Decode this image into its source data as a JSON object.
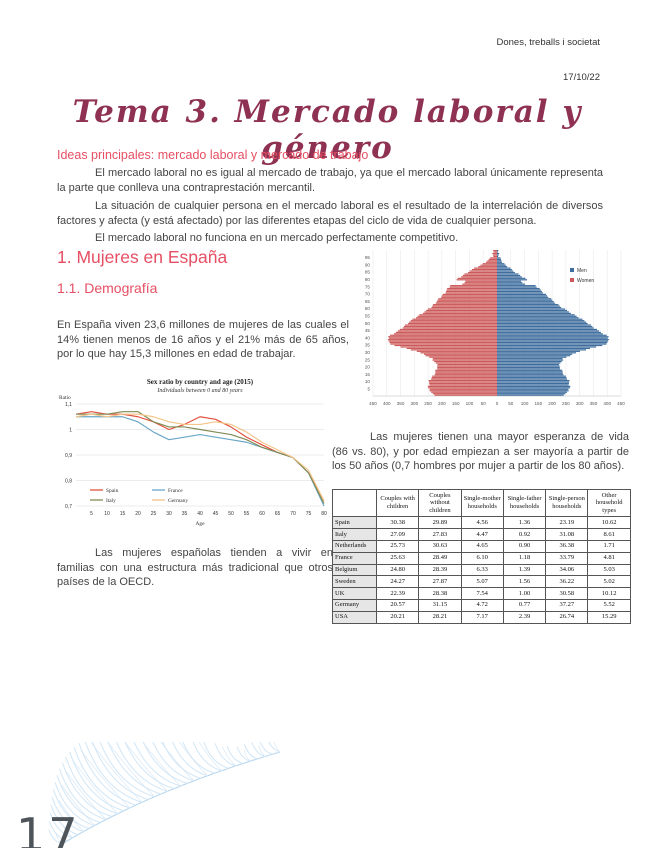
{
  "header": {
    "course": "Dones, treballs i societat",
    "date": "17/10/22"
  },
  "title": "Tema 3. Mercado laboral y género",
  "sections": {
    "ideas_heading": "Ideas principales: mercado laboral y mercado de trabajo",
    "p1": "El mercado laboral no es igual al mercado de trabajo, ya que el mercado laboral únicamente representa la parte que conlleva una contraprestación mercantil.",
    "p2": "La situación de cualquier persona en el mercado laboral es el resultado de la interrelación de diversos factores y afecta (y está afectado) por las diferentes etapas del ciclo de vida de cualquier persona.",
    "p3": "El mercado laboral no funciona en un mercado perfectamente competitivo.",
    "h1": "1. Mujeres en España",
    "h2": "1.1. Demografía",
    "p4": "En España viven 23,6 millones de mujeres de las cuales el 14% tienen menos de 16 años y el 21% más de 65 años, por lo que hay 15,3 millones en edad de trabajar.",
    "p5": "Las mujeres tienen una mayor esperanza de vida (86 vs. 80), y por edad empiezan a ser mayoría a partir de los 50 años (0,7 hombres por mujer a partir de los 80 años).",
    "p6": "Las mujeres españolas tienden a vivir en familias con una estructura más tradicional que otros países de la OECD."
  },
  "page_number": "17",
  "accent_color": "#e64f63",
  "title_color": "#8f3152",
  "chart_data": [
    {
      "id": "population_pyramid",
      "type": "bar",
      "subtype": "population-pyramid",
      "age_groups": [
        "0-4",
        "5-9",
        "10-14",
        "15-19",
        "20-24",
        "25-29",
        "30-34",
        "35-39",
        "40-44",
        "45-49",
        "50-54",
        "55-59",
        "60-64",
        "65-69",
        "70-74",
        "75-79",
        "80-84",
        "85-89",
        "90-94",
        "95-99"
      ],
      "series": [
        {
          "name": "Men",
          "color": "#3f6e9e",
          "side": "right",
          "values": [
            245,
            265,
            260,
            240,
            225,
            240,
            300,
            400,
            405,
            360,
            325,
            280,
            235,
            200,
            170,
            140,
            100,
            60,
            25,
            6
          ]
        },
        {
          "name": "Women",
          "color": "#cd5a5a",
          "side": "left",
          "values": [
            230,
            250,
            245,
            225,
            215,
            235,
            290,
            390,
            395,
            350,
            320,
            280,
            240,
            215,
            190,
            170,
            140,
            100,
            50,
            15
          ]
        }
      ],
      "xlim": [
        -450,
        450
      ],
      "x_tick_step": 50,
      "y_tick_ages": [
        5,
        10,
        15,
        20,
        25,
        30,
        35,
        40,
        45,
        50,
        55,
        60,
        65,
        70,
        75,
        80,
        85,
        90,
        95
      ],
      "legend_position": "top-right",
      "grid": true
    },
    {
      "id": "sex_ratio",
      "type": "line",
      "title": "Sex ratio by country and age (2015)",
      "subtitle": "Individuals between 0 and 80 years",
      "ylabel": "Ratio",
      "xlabel": "Age",
      "x": [
        0,
        5,
        10,
        15,
        20,
        25,
        30,
        35,
        40,
        45,
        50,
        55,
        60,
        65,
        70,
        75,
        80
      ],
      "ylim": [
        0.7,
        1.1
      ],
      "y_ticks": [
        1.1,
        1.0,
        0.9,
        0.8,
        0.7
      ],
      "y_tick_labels": [
        "1,1",
        "1",
        "0,9",
        "0,8",
        "0,7"
      ],
      "x_ticks": [
        5,
        10,
        15,
        20,
        25,
        30,
        35,
        40,
        45,
        50,
        55,
        60,
        65,
        70,
        75,
        80
      ],
      "grid": true,
      "legend_position": "bottom-left",
      "series": [
        {
          "name": "Spain",
          "color": "#e2503c",
          "values": [
            1.06,
            1.07,
            1.06,
            1.06,
            1.05,
            1.03,
            1.0,
            1.02,
            1.05,
            1.04,
            1.01,
            0.97,
            0.94,
            0.91,
            0.89,
            0.83,
            0.72
          ]
        },
        {
          "name": "France",
          "color": "#6aa7c8",
          "values": [
            1.05,
            1.05,
            1.05,
            1.05,
            1.03,
            0.99,
            0.96,
            0.97,
            0.98,
            0.97,
            0.96,
            0.95,
            0.93,
            0.91,
            0.89,
            0.83,
            0.7
          ]
        },
        {
          "name": "Italy",
          "color": "#808c55",
          "values": [
            1.06,
            1.06,
            1.06,
            1.07,
            1.07,
            1.03,
            1.01,
            1.01,
            1.0,
            0.99,
            0.98,
            0.96,
            0.93,
            0.91,
            0.89,
            0.83,
            0.71
          ]
        },
        {
          "name": "Germany",
          "color": "#f3c488",
          "values": [
            1.05,
            1.06,
            1.05,
            1.06,
            1.06,
            1.05,
            1.03,
            1.02,
            1.02,
            1.03,
            1.02,
            0.99,
            0.95,
            0.92,
            0.89,
            0.84,
            0.72
          ]
        }
      ]
    },
    {
      "id": "household_table",
      "type": "table",
      "columns": [
        "Couples with children",
        "Couples without children",
        "Single-mother households",
        "Single-father households",
        "Single-person households",
        "Other household types"
      ],
      "rows": [
        {
          "label": "Spain",
          "values": [
            "30.38",
            "29.89",
            "4.56",
            "1.36",
            "23.19",
            "10.62"
          ]
        },
        {
          "label": "Italy",
          "values": [
            "27.09",
            "27.83",
            "4.47",
            "0.92",
            "31.08",
            "8.61"
          ]
        },
        {
          "label": "Netherlands",
          "values": [
            "25.73",
            "30.63",
            "4.65",
            "0.90",
            "36.38",
            "1.71"
          ]
        },
        {
          "label": "France",
          "values": [
            "25.63",
            "28.49",
            "6.10",
            "1.18",
            "33.79",
            "4.81"
          ]
        },
        {
          "label": "Belgium",
          "values": [
            "24.80",
            "28.39",
            "6.33",
            "1.39",
            "34.06",
            "5.03"
          ]
        },
        {
          "label": "Sweden",
          "values": [
            "24.27",
            "27.87",
            "5.07",
            "1.56",
            "36.22",
            "5.02"
          ]
        },
        {
          "label": "UK",
          "values": [
            "22.39",
            "28.38",
            "7.54",
            "1.00",
            "30.58",
            "10.12"
          ]
        },
        {
          "label": "Germany",
          "values": [
            "20.57",
            "31.15",
            "4.72",
            "0.77",
            "37.27",
            "5.52"
          ]
        },
        {
          "label": "USA",
          "values": [
            "20.21",
            "28.21",
            "7.17",
            "2.39",
            "26.74",
            "15.29"
          ]
        }
      ]
    }
  ]
}
